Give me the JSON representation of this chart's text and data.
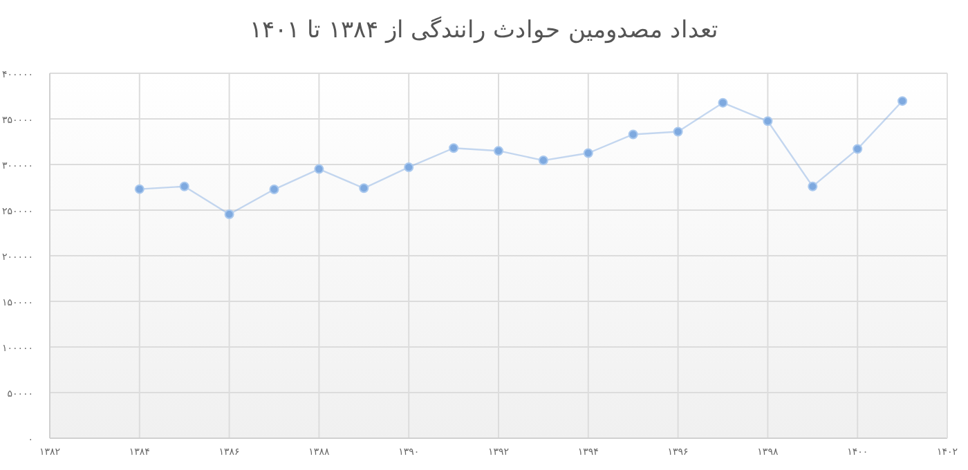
{
  "chart_data": {
    "type": "line",
    "title": "تعداد مصدومین حوادث رانندگی از ۱۳۸۴ تا ۱۴۰۱",
    "x": [
      1384,
      1385,
      1386,
      1387,
      1388,
      1389,
      1390,
      1391,
      1392,
      1393,
      1394,
      1395,
      1396,
      1397,
      1398,
      1399,
      1400,
      1401
    ],
    "series": [
      {
        "color": "#7ea9df",
        "values": [
          273000,
          276000,
          245500,
          272700,
          295000,
          274000,
          297000,
          318000,
          315000,
          304500,
          312500,
          333000,
          336000,
          367700,
          347500,
          276000,
          317000,
          369600
        ]
      }
    ],
    "xlim": [
      1382,
      1402
    ],
    "xticks": [
      {
        "value": 1382,
        "label": "۱۳۸۲"
      },
      {
        "value": 1384,
        "label": "۱۳۸۴"
      },
      {
        "value": 1386,
        "label": "۱۳۸۶"
      },
      {
        "value": 1388,
        "label": "۱۳۸۸"
      },
      {
        "value": 1390,
        "label": "۱۳۹۰"
      },
      {
        "value": 1392,
        "label": "۱۳۹۲"
      },
      {
        "value": 1394,
        "label": "۱۳۹۴"
      },
      {
        "value": 1396,
        "label": "۱۳۹۶"
      },
      {
        "value": 1398,
        "label": "۱۳۹۸"
      },
      {
        "value": 1400,
        "label": "۱۴۰۰"
      },
      {
        "value": 1402,
        "label": "۱۴۰۲"
      }
    ],
    "ylim": [
      0,
      400000
    ],
    "yticks": [
      {
        "value": 0,
        "label": "۰"
      },
      {
        "value": 50000,
        "label": "۵۰۰۰۰"
      },
      {
        "value": 100000,
        "label": "۱۰۰۰۰۰"
      },
      {
        "value": 150000,
        "label": "۱۵۰۰۰۰"
      },
      {
        "value": 200000,
        "label": "۲۰۰۰۰۰"
      },
      {
        "value": 250000,
        "label": "۲۵۰۰۰۰"
      },
      {
        "value": 300000,
        "label": "۳۰۰۰۰۰"
      },
      {
        "value": 350000,
        "label": "۳۵۰۰۰۰"
      },
      {
        "value": 400000,
        "label": "۴۰۰۰۰۰"
      }
    ],
    "grid": true,
    "marker": "circle",
    "line_style": "solid"
  }
}
